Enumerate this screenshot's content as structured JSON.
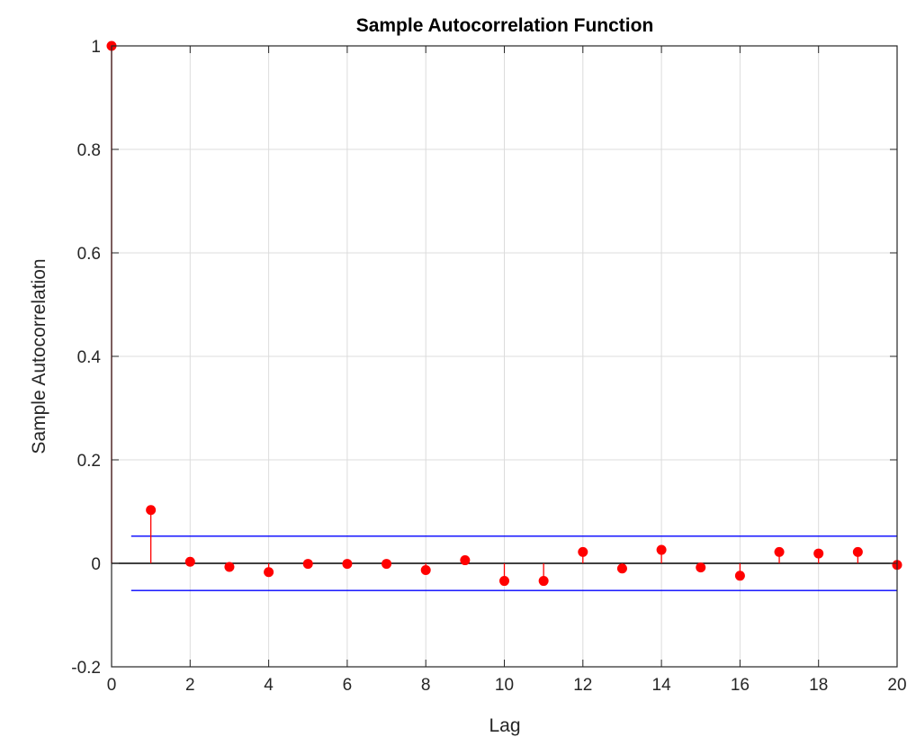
{
  "chart_data": {
    "type": "stem",
    "title": "Sample Autocorrelation Function",
    "xlabel": "Lag",
    "ylabel": "Sample Autocorrelation",
    "xlim": [
      0,
      20
    ],
    "ylim": [
      -0.2,
      1
    ],
    "xticks": [
      0,
      2,
      4,
      6,
      8,
      10,
      12,
      14,
      16,
      18,
      20
    ],
    "xtick_labels": [
      "0",
      "2",
      "4",
      "6",
      "8",
      "10",
      "12",
      "14",
      "16",
      "18",
      "20"
    ],
    "yticks": [
      -0.2,
      0,
      0.2,
      0.4,
      0.6,
      0.8,
      1
    ],
    "ytick_labels": [
      "-0.2",
      "0",
      "0.2",
      "0.4",
      "0.6",
      "0.8",
      "1"
    ],
    "grid": true,
    "series": [
      {
        "x": [
          0,
          1,
          2,
          3,
          4,
          5,
          6,
          7,
          8,
          9,
          10,
          11,
          12,
          13,
          14,
          15,
          16,
          17,
          18,
          19,
          20
        ],
        "values": [
          1.0,
          0.103,
          0.003,
          -0.007,
          -0.017,
          -0.001,
          -0.001,
          -0.001,
          -0.013,
          0.006,
          -0.034,
          -0.034,
          0.022,
          -0.01,
          0.026,
          -0.008,
          -0.024,
          0.022,
          0.019,
          0.022,
          -0.003
        ],
        "color": "#ff0000"
      }
    ],
    "confidence_bounds": {
      "upper": 0.0525,
      "lower": -0.0525,
      "x_range": [
        0.5,
        20
      ],
      "color": "#0000ff"
    },
    "zero_line_color": "#000000"
  }
}
